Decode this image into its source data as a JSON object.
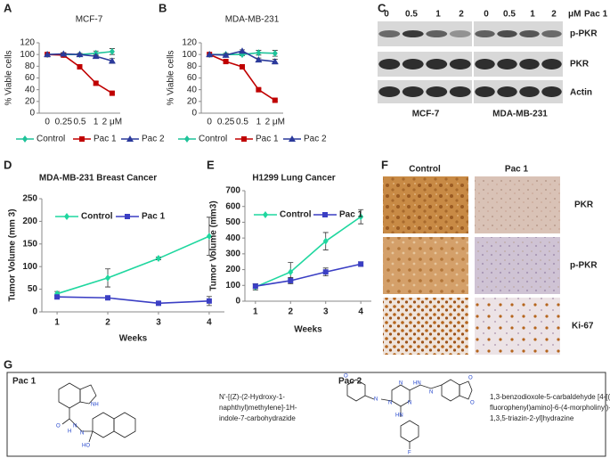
{
  "panel_labels": [
    "A",
    "B",
    "C",
    "D",
    "E",
    "F",
    "G"
  ],
  "chart_data": [
    {
      "type": "line",
      "title": "MCF-7",
      "y_label": "% Viable cells",
      "categories": [
        "0",
        "0.25",
        "0.5",
        "1",
        "2 μM"
      ],
      "ylim": [
        0,
        120
      ],
      "yticks": [
        0,
        20,
        40,
        60,
        80,
        100,
        120
      ],
      "legend": "bottom",
      "series": [
        {
          "name": "Control",
          "color": "#1fc39a",
          "marker": "diamond",
          "values": [
            100,
            100,
            100,
            102,
            105
          ],
          "errors": [
            0,
            2,
            2,
            4,
            5
          ]
        },
        {
          "name": "Pac 1",
          "color": "#c00000",
          "marker": "square",
          "values": [
            100,
            99,
            79,
            51,
            34
          ],
          "errors": [
            0,
            2,
            2,
            3,
            2
          ]
        },
        {
          "name": "Pac 2",
          "color": "#2b3a9b",
          "marker": "triangle",
          "values": [
            100,
            101,
            100,
            97,
            89
          ],
          "errors": [
            0,
            2,
            2,
            2,
            4
          ]
        }
      ]
    },
    {
      "type": "line",
      "title": "MDA-MB-231",
      "y_label": "% Viable cells",
      "categories": [
        "0",
        "0.25",
        "0.5",
        "1",
        "2 μM"
      ],
      "ylim": [
        0,
        120
      ],
      "yticks": [
        0,
        20,
        40,
        60,
        80,
        100,
        120
      ],
      "legend": "bottom",
      "series": [
        {
          "name": "Control",
          "color": "#1fc39a",
          "marker": "diamond",
          "values": [
            100,
            100,
            100,
            103,
            102
          ],
          "errors": [
            0,
            2,
            2,
            4,
            5
          ]
        },
        {
          "name": "Pac 1",
          "color": "#c00000",
          "marker": "square",
          "values": [
            100,
            88,
            79,
            40,
            22
          ],
          "errors": [
            0,
            2,
            2,
            2,
            2
          ]
        },
        {
          "name": "Pac 2",
          "color": "#2b3a9b",
          "marker": "triangle",
          "values": [
            100,
            99,
            106,
            91,
            88
          ],
          "errors": [
            0,
            3,
            2,
            3,
            4
          ]
        }
      ]
    },
    {
      "type": "line",
      "title": "MDA-MB-231 Breast Cancer",
      "y_label": "Tumor Volume (mm 3)",
      "x_label": "Weeks",
      "x": [
        1,
        2,
        3,
        4
      ],
      "xlim": [
        0.7,
        4.3
      ],
      "xticks": [
        1,
        2,
        3,
        4
      ],
      "ylim": [
        0,
        250
      ],
      "yticks": [
        0,
        50,
        100,
        150,
        200,
        250
      ],
      "legend": "top-left",
      "series": [
        {
          "name": "Control",
          "color": "#1fd79f",
          "marker": "diamond",
          "values": [
            40,
            75,
            118,
            167
          ],
          "errors": [
            5,
            20,
            3,
            42
          ]
        },
        {
          "name": "Pac 1",
          "color": "#3b3fc4",
          "marker": "square",
          "values": [
            33,
            31,
            19,
            24
          ],
          "errors": [
            3,
            3,
            3,
            10
          ]
        }
      ]
    },
    {
      "type": "line",
      "title": "H1299 Lung Cancer",
      "y_label": "Tumor Volume (mm3)",
      "x_label": "Weeks",
      "x": [
        1,
        2,
        3,
        4
      ],
      "xlim": [
        0.7,
        4.3
      ],
      "xticks": [
        1,
        2,
        3,
        4
      ],
      "ylim": [
        0,
        700
      ],
      "yticks": [
        0,
        100,
        200,
        300,
        400,
        500,
        600,
        700
      ],
      "legend": "top-left",
      "series": [
        {
          "name": "Control",
          "color": "#1fd79f",
          "marker": "diamond",
          "values": [
            90,
            185,
            380,
            535
          ],
          "errors": [
            20,
            60,
            55,
            45
          ]
        },
        {
          "name": "Pac 1",
          "color": "#3b3fc4",
          "marker": "square",
          "values": [
            95,
            130,
            185,
            235
          ],
          "errors": [
            15,
            20,
            25,
            15
          ]
        }
      ]
    }
  ],
  "western_blot": {
    "doses": [
      "0",
      "0.5",
      "1",
      "2",
      "0",
      "0.5",
      "1",
      "2"
    ],
    "unit": "μM",
    "treatment": "Pac 1",
    "proteins": [
      "p-PKR",
      "PKR",
      "Actin"
    ],
    "cell_lines": [
      "MCF-7",
      "MDA-MB-231"
    ]
  },
  "ihc": {
    "columns": [
      "Control",
      "Pac 1"
    ],
    "rows": [
      "PKR",
      "p-PKR",
      "Ki-67"
    ]
  },
  "structures": [
    {
      "label": "Pac 1",
      "name_lines": [
        "N'-[(Z)-(2-Hydroxy-1-",
        "naphthyl)methylene]-1H-",
        "indole-7-carbohydrazide"
      ],
      "atoms": [
        "NH",
        "O",
        "H",
        "N",
        "N",
        "HO"
      ]
    },
    {
      "label": "Pac 2",
      "name_lines": [
        "1,3-benzodioxole-5-carbaldehyde [4-[(4-",
        "fluorophenyl)amino]-6-(4-morpholinyl)-",
        "1,3,5-triazin-2-yl]hydrazine"
      ],
      "atoms": [
        "O",
        "N",
        "N",
        "N",
        "N",
        "HN",
        "N",
        "O",
        "O",
        "HN",
        "F"
      ]
    }
  ]
}
